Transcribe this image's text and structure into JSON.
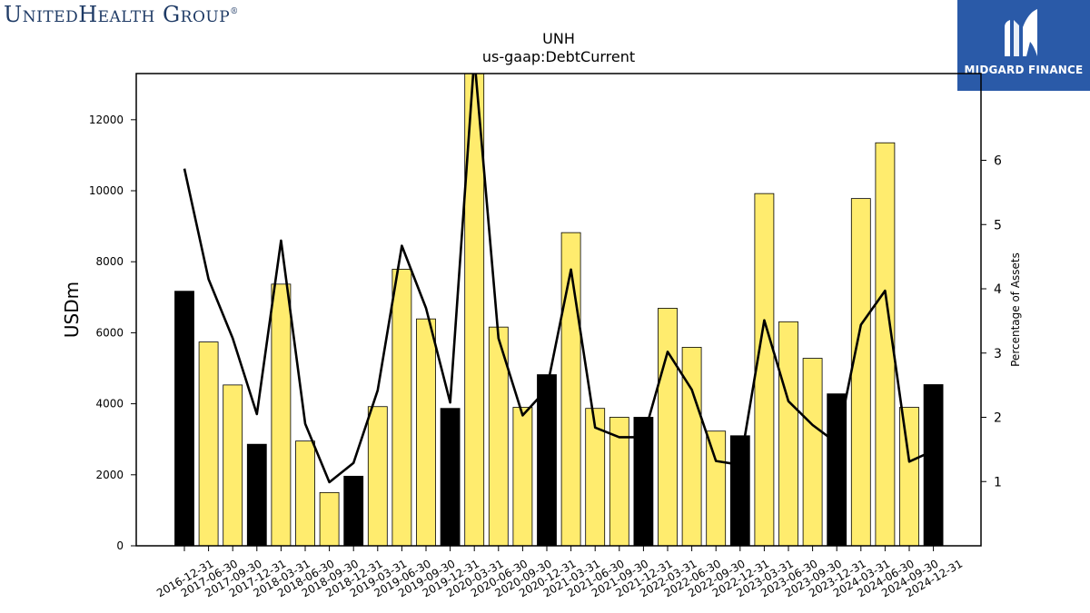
{
  "branding": {
    "company_logo_text": "UnitedHealth Group",
    "company_logo_reg": "®",
    "publisher_name": "MIDGARD FINANCE",
    "publisher_color": "#2a5aa8"
  },
  "chart_data": {
    "type": "bar",
    "title": "UNH",
    "subtitle": "us-gaap:DebtCurrent",
    "ylabel": "USDm",
    "y2label": "Percentage of Assets",
    "ylim": [
      0,
      13300
    ],
    "y2lim": [
      0,
      7.35
    ],
    "yticks": [
      0,
      2000,
      4000,
      6000,
      8000,
      10000,
      12000
    ],
    "y2ticks": [
      1,
      2,
      3,
      4,
      5,
      6
    ],
    "categories": [
      "2016-12-31",
      "2017-06-30",
      "2017-09-30",
      "2017-12-31",
      "2018-03-31",
      "2018-06-30",
      "2018-09-30",
      "2018-12-31",
      "2019-03-31",
      "2019-06-30",
      "2019-09-30",
      "2019-12-31",
      "2020-03-31",
      "2020-06-30",
      "2020-09-30",
      "2020-12-31",
      "2021-03-31",
      "2021-06-30",
      "2021-09-30",
      "2021-12-31",
      "2022-03-31",
      "2022-06-30",
      "2022-09-30",
      "2022-12-31",
      "2023-03-31",
      "2023-06-30",
      "2023-09-30",
      "2023-12-31",
      "2024-03-31",
      "2024-06-30",
      "2024-09-30",
      "2024-12-31"
    ],
    "series": [
      {
        "kind": "bar",
        "values": [
          7170,
          5740,
          4530,
          2860,
          7370,
          2950,
          1500,
          1960,
          3920,
          7790,
          6390,
          3870,
          13400,
          6160,
          3900,
          4820,
          8820,
          3870,
          3620,
          3620,
          6690,
          5590,
          3230,
          3100,
          9920,
          6310,
          5280,
          4280,
          9780,
          11350,
          3900,
          4540
        ]
      },
      {
        "kind": "line",
        "axis": "right",
        "values": [
          5.87,
          4.15,
          3.23,
          2.05,
          4.75,
          1.9,
          0.99,
          1.29,
          2.42,
          4.67,
          3.7,
          2.23,
          7.6,
          3.23,
          2.03,
          2.44,
          4.3,
          1.84,
          1.69,
          1.69,
          3.02,
          2.43,
          1.32,
          1.26,
          3.51,
          2.25,
          1.88,
          1.6,
          3.44,
          3.97,
          1.31,
          1.48
        ]
      }
    ],
    "year_end_color": "#000000",
    "quarter_color": "#ffec6e",
    "line_color": "#000000",
    "grid": false
  }
}
